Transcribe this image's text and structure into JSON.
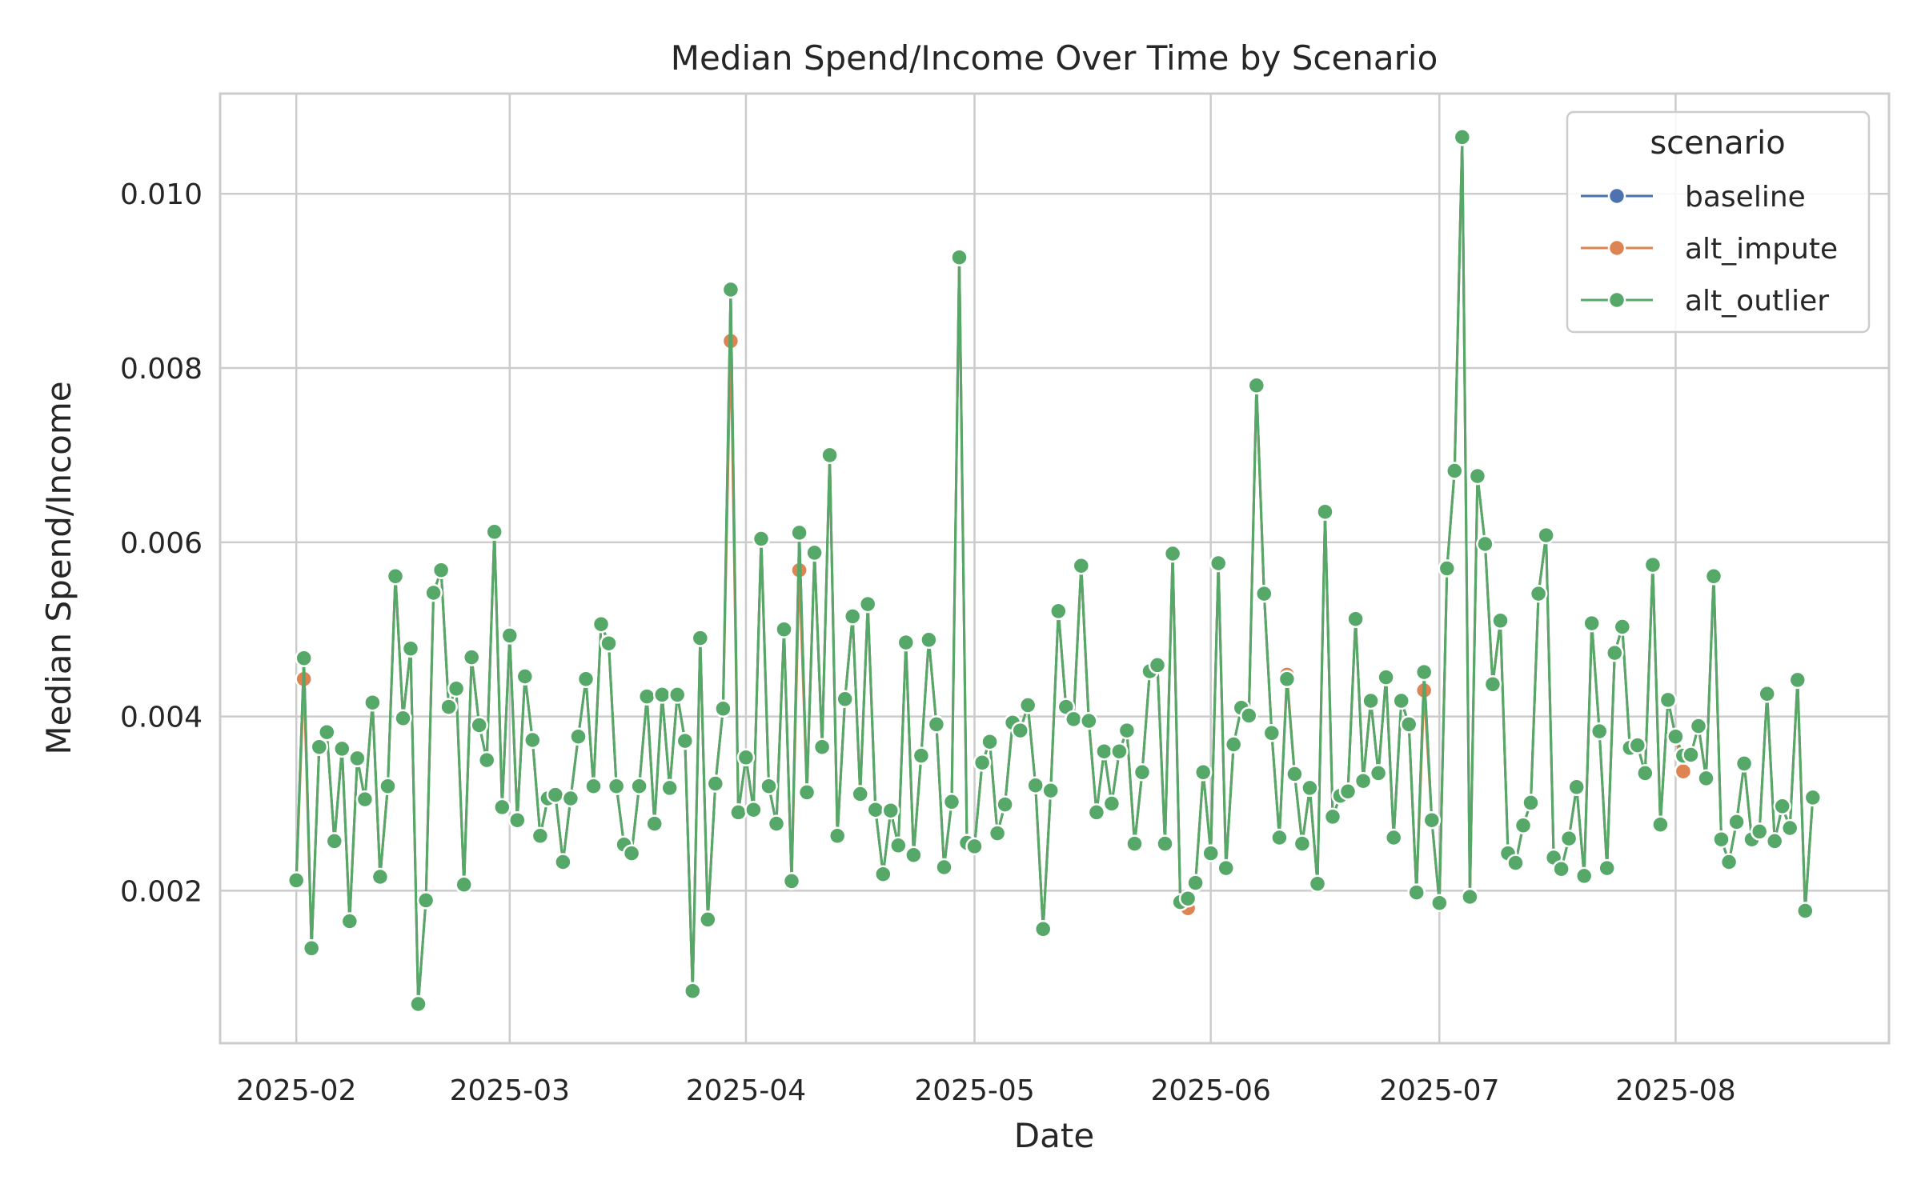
{
  "chart_data": {
    "type": "line",
    "title": "Median Spend/Income Over Time by Scenario",
    "xlabel": "Date",
    "ylabel": "Median Spend/Income",
    "x_type": "date",
    "xlim": [
      "2025-01-22",
      "2025-08-29"
    ],
    "ylim": [
      0.00025,
      0.01115
    ],
    "yticks": [
      0.002,
      0.004,
      0.006,
      0.008,
      0.01
    ],
    "ytick_labels": [
      "0.002",
      "0.004",
      "0.006",
      "0.008",
      "0.010"
    ],
    "xticks": [
      "2025-02-01",
      "2025-03-01",
      "2025-04-01",
      "2025-05-01",
      "2025-06-01",
      "2025-07-01",
      "2025-08-01"
    ],
    "xtick_labels": [
      "2025-02",
      "2025-03",
      "2025-04",
      "2025-05",
      "2025-06",
      "2025-07",
      "2025-08"
    ],
    "grid": true,
    "legend": {
      "title": "scenario",
      "position": "top-right"
    },
    "start_date": "2025-02-01",
    "x": [
      "2025-02-01",
      "2025-02-02",
      "2025-02-03",
      "2025-02-04",
      "2025-02-05",
      "2025-02-06",
      "2025-02-07",
      "2025-02-08",
      "2025-02-09",
      "2025-02-10",
      "2025-02-11",
      "2025-02-12",
      "2025-02-13",
      "2025-02-14",
      "2025-02-15",
      "2025-02-16",
      "2025-02-17",
      "2025-02-18",
      "2025-02-19",
      "2025-02-20",
      "2025-02-21",
      "2025-02-22",
      "2025-02-23",
      "2025-02-24",
      "2025-02-25",
      "2025-02-26",
      "2025-02-27",
      "2025-02-28",
      "2025-03-01",
      "2025-03-02",
      "2025-03-03",
      "2025-03-04",
      "2025-03-05",
      "2025-03-06",
      "2025-03-07",
      "2025-03-08",
      "2025-03-09",
      "2025-03-10",
      "2025-03-11",
      "2025-03-12",
      "2025-03-13",
      "2025-03-14",
      "2025-03-15",
      "2025-03-16",
      "2025-03-17",
      "2025-03-18",
      "2025-03-19",
      "2025-03-20",
      "2025-03-21",
      "2025-03-22",
      "2025-03-23",
      "2025-03-24",
      "2025-03-25",
      "2025-03-26",
      "2025-03-27",
      "2025-03-28",
      "2025-03-29",
      "2025-03-30",
      "2025-03-31",
      "2025-04-01",
      "2025-04-02",
      "2025-04-03",
      "2025-04-04",
      "2025-04-05",
      "2025-04-06",
      "2025-04-07",
      "2025-04-08",
      "2025-04-09",
      "2025-04-10",
      "2025-04-11",
      "2025-04-12",
      "2025-04-13",
      "2025-04-14",
      "2025-04-15",
      "2025-04-16",
      "2025-04-17",
      "2025-04-18",
      "2025-04-19",
      "2025-04-20",
      "2025-04-21",
      "2025-04-22",
      "2025-04-23",
      "2025-04-24",
      "2025-04-25",
      "2025-04-26",
      "2025-04-27",
      "2025-04-28",
      "2025-04-29",
      "2025-04-30",
      "2025-05-01",
      "2025-05-02",
      "2025-05-03",
      "2025-05-04",
      "2025-05-05",
      "2025-05-06",
      "2025-05-07",
      "2025-05-08",
      "2025-05-09",
      "2025-05-10",
      "2025-05-11",
      "2025-05-12",
      "2025-05-13",
      "2025-05-14",
      "2025-05-15",
      "2025-05-16",
      "2025-05-17",
      "2025-05-18",
      "2025-05-19",
      "2025-05-20",
      "2025-05-21",
      "2025-05-22",
      "2025-05-23",
      "2025-05-24",
      "2025-05-25",
      "2025-05-26",
      "2025-05-27",
      "2025-05-28",
      "2025-05-29",
      "2025-05-30",
      "2025-05-31",
      "2025-06-01",
      "2025-06-02",
      "2025-06-03",
      "2025-06-04",
      "2025-06-05",
      "2025-06-06",
      "2025-06-07",
      "2025-06-08",
      "2025-06-09",
      "2025-06-10",
      "2025-06-11",
      "2025-06-12",
      "2025-06-13",
      "2025-06-14",
      "2025-06-15",
      "2025-06-16",
      "2025-06-17",
      "2025-06-18",
      "2025-06-19",
      "2025-06-20",
      "2025-06-21",
      "2025-06-22",
      "2025-06-23",
      "2025-06-24",
      "2025-06-25",
      "2025-06-26",
      "2025-06-27",
      "2025-06-28",
      "2025-06-29",
      "2025-06-30",
      "2025-07-01",
      "2025-07-02",
      "2025-07-03",
      "2025-07-04",
      "2025-07-05",
      "2025-07-06",
      "2025-07-07",
      "2025-07-08",
      "2025-07-09",
      "2025-07-10",
      "2025-07-11",
      "2025-07-12",
      "2025-07-13",
      "2025-07-14",
      "2025-07-15",
      "2025-07-16",
      "2025-07-17",
      "2025-07-18",
      "2025-07-19",
      "2025-07-20",
      "2025-07-21",
      "2025-07-22",
      "2025-07-23",
      "2025-07-24",
      "2025-07-25",
      "2025-07-26",
      "2025-07-27",
      "2025-07-28",
      "2025-07-29",
      "2025-07-30",
      "2025-07-31",
      "2025-08-01",
      "2025-08-02",
      "2025-08-03",
      "2025-08-04",
      "2025-08-05",
      "2025-08-06",
      "2025-08-07",
      "2025-08-08",
      "2025-08-09",
      "2025-08-10",
      "2025-08-11",
      "2025-08-12",
      "2025-08-13",
      "2025-08-14",
      "2025-08-15",
      "2025-08-16",
      "2025-08-17",
      "2025-08-18",
      "2025-08-19"
    ],
    "series": [
      {
        "name": "baseline",
        "color": "#4c72b0",
        "values": [
          0.00212,
          0.00467,
          0.00134,
          0.00365,
          0.00382,
          0.00257,
          0.00363,
          0.00165,
          0.00352,
          0.00305,
          0.00416,
          0.00216,
          0.0032,
          0.00561,
          0.00398,
          0.00478,
          0.0007,
          0.00189,
          0.00542,
          0.00568,
          0.00411,
          0.00432,
          0.00207,
          0.00468,
          0.0039,
          0.0035,
          0.00612,
          0.00296,
          0.00493,
          0.00281,
          0.00446,
          0.00373,
          0.00263,
          0.00306,
          0.0031,
          0.00233,
          0.00306,
          0.00377,
          0.00443,
          0.0032,
          0.00506,
          0.00484,
          0.0032,
          0.00253,
          0.00243,
          0.0032,
          0.00423,
          0.00277,
          0.00425,
          0.00318,
          0.00425,
          0.00372,
          0.00085,
          0.0049,
          0.00167,
          0.00323,
          0.00409,
          0.0089,
          0.0029,
          0.00353,
          0.00293,
          0.00604,
          0.0032,
          0.00277,
          0.005,
          0.00211,
          0.00611,
          0.00313,
          0.00588,
          0.00365,
          0.007,
          0.00263,
          0.0042,
          0.00515,
          0.00311,
          0.00529,
          0.00293,
          0.00219,
          0.00292,
          0.00252,
          0.00485,
          0.00241,
          0.00355,
          0.00488,
          0.00391,
          0.00227,
          0.00302,
          0.00927,
          0.00255,
          0.00251,
          0.00347,
          0.00371,
          0.00266,
          0.00299,
          0.00393,
          0.00384,
          0.00413,
          0.00321,
          0.00156,
          0.00315,
          0.00521,
          0.00411,
          0.00397,
          0.00573,
          0.00395,
          0.0029,
          0.0036,
          0.003,
          0.0036,
          0.00384,
          0.00254,
          0.00336,
          0.00452,
          0.00459,
          0.00254,
          0.00587,
          0.00187,
          0.00191,
          0.00209,
          0.00336,
          0.00243,
          0.00576,
          0.00226,
          0.00368,
          0.0041,
          0.00401,
          0.0078,
          0.00541,
          0.00381,
          0.00261,
          0.00443,
          0.00334,
          0.00254,
          0.00318,
          0.00208,
          0.00635,
          0.00285,
          0.00309,
          0.00314,
          0.00512,
          0.00326,
          0.00418,
          0.00335,
          0.00445,
          0.00261,
          0.00418,
          0.00391,
          0.00198,
          0.00451,
          0.00281,
          0.00186,
          0.0057,
          0.00682,
          0.01065,
          0.00193,
          0.00676,
          0.00598,
          0.00437,
          0.0051,
          0.00243,
          0.00232,
          0.00275,
          0.00301,
          0.00541,
          0.00608,
          0.00238,
          0.00225,
          0.0026,
          0.00319,
          0.00217,
          0.00507,
          0.00383,
          0.00226,
          0.00473,
          0.00503,
          0.00364,
          0.00367,
          0.00335,
          0.00574,
          0.00276,
          0.00419,
          0.00377,
          0.00355,
          0.00356,
          0.00389,
          0.00329,
          0.00561,
          0.00259,
          0.00233,
          0.00279,
          0.00346,
          0.00259,
          0.00268,
          0.00426,
          0.00257,
          0.00297,
          0.00272,
          0.00442,
          0.00177,
          0.00307
        ]
      },
      {
        "name": "alt_impute",
        "color": "#dd8452",
        "values": [
          0.00212,
          0.00443,
          0.00134,
          0.00365,
          0.00382,
          0.00257,
          0.00363,
          0.00165,
          0.00352,
          0.00305,
          0.00416,
          0.00216,
          0.0032,
          0.00561,
          0.00398,
          0.00478,
          0.0007,
          0.00189,
          0.00542,
          0.00568,
          0.00411,
          0.00432,
          0.00207,
          0.00468,
          0.0039,
          0.0035,
          0.00612,
          0.00296,
          0.00493,
          0.00281,
          0.00446,
          0.00373,
          0.00263,
          0.00306,
          0.0031,
          0.00233,
          0.00306,
          0.00377,
          0.00443,
          0.0032,
          0.00506,
          0.00484,
          0.0032,
          0.00253,
          0.00243,
          0.0032,
          0.00423,
          0.00277,
          0.00425,
          0.00318,
          0.00425,
          0.00372,
          0.00085,
          0.0049,
          0.00167,
          0.00323,
          0.00409,
          0.00831,
          0.0029,
          0.00353,
          0.00293,
          0.00604,
          0.0032,
          0.00277,
          0.005,
          0.00211,
          0.00568,
          0.00313,
          0.00588,
          0.00365,
          0.007,
          0.00263,
          0.0042,
          0.00515,
          0.00311,
          0.00529,
          0.00293,
          0.00219,
          0.00292,
          0.00252,
          0.00485,
          0.00241,
          0.00355,
          0.00488,
          0.00391,
          0.00227,
          0.00302,
          0.00927,
          0.00255,
          0.00251,
          0.00347,
          0.00371,
          0.00266,
          0.00299,
          0.00393,
          0.00384,
          0.00413,
          0.00321,
          0.00156,
          0.00315,
          0.00521,
          0.00411,
          0.00397,
          0.00573,
          0.00395,
          0.0029,
          0.0036,
          0.003,
          0.0036,
          0.00384,
          0.00254,
          0.00336,
          0.00452,
          0.00459,
          0.00254,
          0.00587,
          0.00187,
          0.0018,
          0.00209,
          0.00336,
          0.00243,
          0.00576,
          0.00226,
          0.00368,
          0.0041,
          0.00401,
          0.0078,
          0.00541,
          0.00381,
          0.00261,
          0.00448,
          0.00334,
          0.00254,
          0.00318,
          0.00208,
          0.00635,
          0.00285,
          0.00309,
          0.00314,
          0.00512,
          0.00326,
          0.00418,
          0.00335,
          0.00445,
          0.00261,
          0.00418,
          0.00391,
          0.00198,
          0.0043,
          0.00281,
          0.00186,
          0.0057,
          0.00682,
          0.01065,
          0.00193,
          0.00676,
          0.00598,
          0.00437,
          0.0051,
          0.00243,
          0.00232,
          0.00275,
          0.00301,
          0.00541,
          0.00608,
          0.00238,
          0.00225,
          0.0026,
          0.00319,
          0.00217,
          0.00507,
          0.00383,
          0.00226,
          0.00473,
          0.00503,
          0.00364,
          0.00367,
          0.00335,
          0.00574,
          0.00276,
          0.00419,
          0.00377,
          0.00337,
          0.00356,
          0.00389,
          0.00329,
          0.00561,
          0.00259,
          0.00233,
          0.00279,
          0.00346,
          0.00259,
          0.00268,
          0.00426,
          0.00257,
          0.00297,
          0.00272,
          0.00442,
          0.00177,
          0.00307
        ]
      },
      {
        "name": "alt_outlier",
        "color": "#55a868",
        "values": [
          0.00212,
          0.00467,
          0.00134,
          0.00365,
          0.00382,
          0.00257,
          0.00363,
          0.00165,
          0.00352,
          0.00305,
          0.00416,
          0.00216,
          0.0032,
          0.00561,
          0.00398,
          0.00478,
          0.0007,
          0.00189,
          0.00542,
          0.00568,
          0.00411,
          0.00432,
          0.00207,
          0.00468,
          0.0039,
          0.0035,
          0.00612,
          0.00296,
          0.00493,
          0.00281,
          0.00446,
          0.00373,
          0.00263,
          0.00306,
          0.0031,
          0.00233,
          0.00306,
          0.00377,
          0.00443,
          0.0032,
          0.00506,
          0.00484,
          0.0032,
          0.00253,
          0.00243,
          0.0032,
          0.00423,
          0.00277,
          0.00425,
          0.00318,
          0.00425,
          0.00372,
          0.00085,
          0.0049,
          0.00167,
          0.00323,
          0.00409,
          0.0089,
          0.0029,
          0.00353,
          0.00293,
          0.00604,
          0.0032,
          0.00277,
          0.005,
          0.00211,
          0.00611,
          0.00313,
          0.00588,
          0.00365,
          0.007,
          0.00263,
          0.0042,
          0.00515,
          0.00311,
          0.00529,
          0.00293,
          0.00219,
          0.00292,
          0.00252,
          0.00485,
          0.00241,
          0.00355,
          0.00488,
          0.00391,
          0.00227,
          0.00302,
          0.00927,
          0.00255,
          0.00251,
          0.00347,
          0.00371,
          0.00266,
          0.00299,
          0.00393,
          0.00384,
          0.00413,
          0.00321,
          0.00156,
          0.00315,
          0.00521,
          0.00411,
          0.00397,
          0.00573,
          0.00395,
          0.0029,
          0.0036,
          0.003,
          0.0036,
          0.00384,
          0.00254,
          0.00336,
          0.00452,
          0.00459,
          0.00254,
          0.00587,
          0.00187,
          0.00191,
          0.00209,
          0.00336,
          0.00243,
          0.00576,
          0.00226,
          0.00368,
          0.0041,
          0.00401,
          0.0078,
          0.00541,
          0.00381,
          0.00261,
          0.00443,
          0.00334,
          0.00254,
          0.00318,
          0.00208,
          0.00635,
          0.00285,
          0.00309,
          0.00314,
          0.00512,
          0.00326,
          0.00418,
          0.00335,
          0.00445,
          0.00261,
          0.00418,
          0.00391,
          0.00198,
          0.00451,
          0.00281,
          0.00186,
          0.0057,
          0.00682,
          0.01065,
          0.00193,
          0.00676,
          0.00598,
          0.00437,
          0.0051,
          0.00243,
          0.00232,
          0.00275,
          0.00301,
          0.00541,
          0.00608,
          0.00238,
          0.00225,
          0.0026,
          0.00319,
          0.00217,
          0.00507,
          0.00383,
          0.00226,
          0.00473,
          0.00503,
          0.00364,
          0.00367,
          0.00335,
          0.00574,
          0.00276,
          0.00419,
          0.00377,
          0.00355,
          0.00356,
          0.00389,
          0.00329,
          0.00561,
          0.00259,
          0.00233,
          0.00279,
          0.00346,
          0.00259,
          0.00268,
          0.00426,
          0.00257,
          0.00297,
          0.00272,
          0.00442,
          0.00177,
          0.00307
        ]
      }
    ]
  }
}
